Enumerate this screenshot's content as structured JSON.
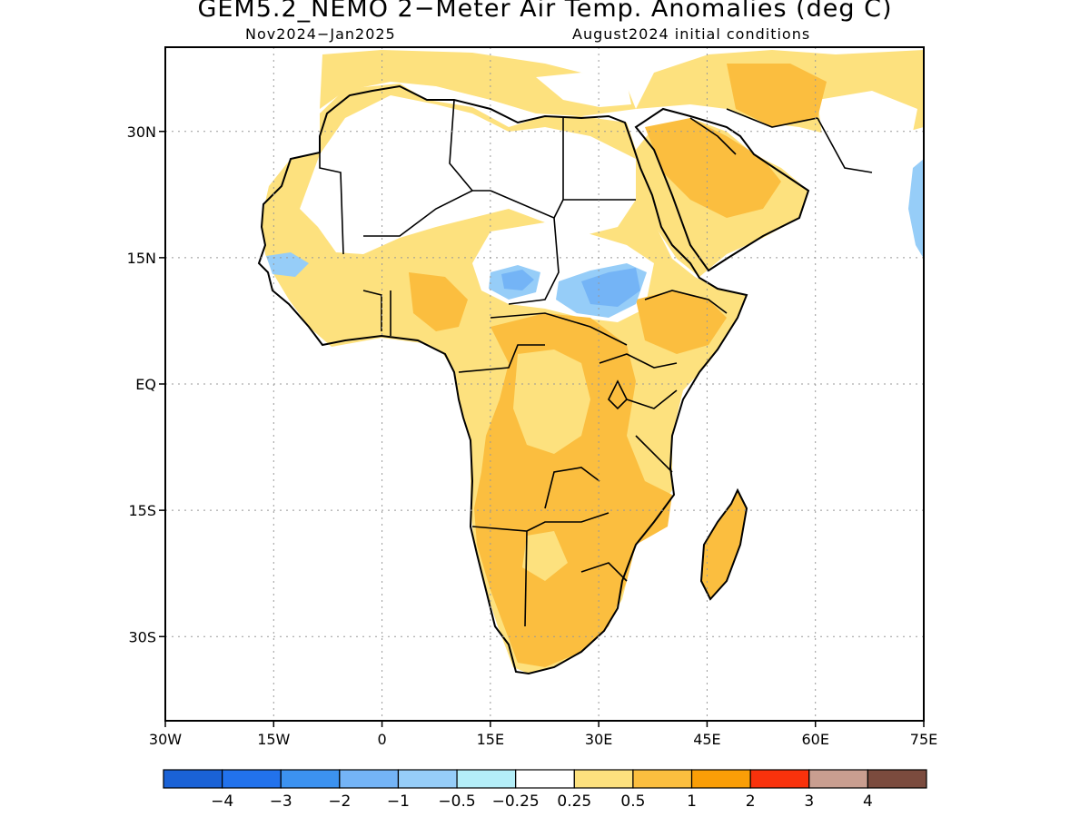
{
  "title": "GEM5.2_NEMO 2−Meter Air Temp. Anomalies (deg C)",
  "subtitle_left": "Nov2024−Jan2025",
  "subtitle_right": "August2024 initial conditions",
  "map": {
    "lon_range": [
      -30,
      75
    ],
    "lat_range": [
      -40,
      40
    ],
    "lat_ticks": [
      {
        "value": 30,
        "label": "30N"
      },
      {
        "value": 15,
        "label": "15N"
      },
      {
        "value": 0,
        "label": "EQ"
      },
      {
        "value": -15,
        "label": "15S"
      },
      {
        "value": -30,
        "label": "30S"
      }
    ],
    "lon_ticks": [
      {
        "value": -30,
        "label": "30W"
      },
      {
        "value": -15,
        "label": "15W"
      },
      {
        "value": 0,
        "label": "0"
      },
      {
        "value": 15,
        "label": "15E"
      },
      {
        "value": 30,
        "label": "30E"
      },
      {
        "value": 45,
        "label": "45E"
      },
      {
        "value": 60,
        "label": "60E"
      },
      {
        "value": 75,
        "label": "75E"
      }
    ],
    "grid": true
  },
  "colorbar": {
    "colors": [
      "#1a62d6",
      "#2272ec",
      "#3c92f0",
      "#74b4f6",
      "#96cdf8",
      "#b4eef8",
      "#ffffff",
      "#fde17e",
      "#fbbe3f",
      "#fa9e07",
      "#f9320c",
      "#c99e90",
      "#7b4b3e"
    ],
    "labels": [
      "−4",
      "−3",
      "−2",
      "−1",
      "−0.5",
      "−0.25",
      "0.25",
      "0.5",
      "1",
      "2",
      "3",
      "4"
    ]
  },
  "colors": {
    "light_yellow": "#fde17e",
    "orange": "#fbbe3f",
    "light_blue": "#96cdf8",
    "mid_blue": "#74b4f6"
  }
}
